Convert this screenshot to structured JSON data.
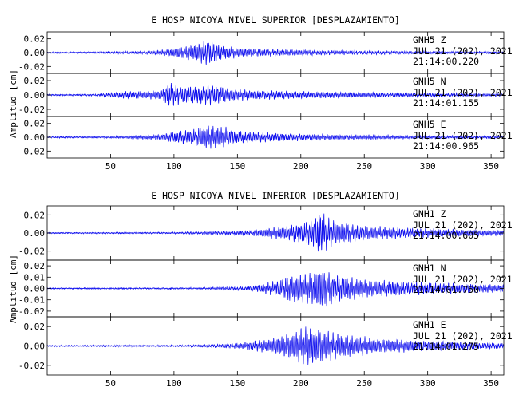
{
  "chart_data": [
    {
      "type": "line",
      "title": "E HOSP NICOYA NIVEL SUPERIOR [DESPLAZAMIENTO]",
      "ylabel": "Amplitud [cm]",
      "xlim": [
        0,
        360
      ],
      "x_ticks": [
        50,
        100,
        150,
        200,
        250,
        300,
        350
      ],
      "color": "#1111ee",
      "panels": [
        {
          "ylim": [
            -0.03,
            0.03
          ],
          "y_ticks": [
            "0.02",
            "0.00",
            "-0.02"
          ],
          "y_tick_values": [
            0.02,
            0.0,
            -0.02
          ],
          "station": "GNH5",
          "component": "Z",
          "date": "JUL 21 (202), 2021",
          "time": "21:14:00.220",
          "signal": {
            "noise": 0.0011,
            "envelope_points": [
              [
                0,
                0.0008
              ],
              [
                40,
                0.0009
              ],
              [
                80,
                0.0022
              ],
              [
                95,
                0.0045
              ],
              [
                110,
                0.009
              ],
              [
                120,
                0.013
              ],
              [
                127,
                0.019
              ],
              [
                135,
                0.011
              ],
              [
                150,
                0.0065
              ],
              [
                180,
                0.0045
              ],
              [
                220,
                0.003
              ],
              [
                280,
                0.002
              ],
              [
                360,
                0.0012
              ]
            ]
          }
        },
        {
          "ylim": [
            -0.03,
            0.03
          ],
          "y_ticks": [
            "0.02",
            "0.00",
            "-0.02"
          ],
          "y_tick_values": [
            0.02,
            0.0,
            -0.02
          ],
          "station": "GNH5",
          "component": "N",
          "date": "JUL 21 (202), 2021",
          "time": "21:14:01.155",
          "signal": {
            "noise": 0.001,
            "envelope_points": [
              [
                0,
                0.0006
              ],
              [
                40,
                0.001
              ],
              [
                55,
                0.0045
              ],
              [
                75,
                0.005
              ],
              [
                90,
                0.006
              ],
              [
                96,
                0.016
              ],
              [
                105,
                0.012
              ],
              [
                120,
                0.011
              ],
              [
                128,
                0.014
              ],
              [
                150,
                0.007
              ],
              [
                200,
                0.0045
              ],
              [
                260,
                0.003
              ],
              [
                360,
                0.0015
              ]
            ]
          }
        },
        {
          "ylim": [
            -0.03,
            0.03
          ],
          "y_ticks": [
            "0.02",
            "0.00",
            "-0.02"
          ],
          "y_tick_values": [
            0.02,
            0.0,
            -0.02
          ],
          "station": "GNH5",
          "component": "E",
          "date": "JUL 21 (202), 2021",
          "time": "21:14:00.965",
          "signal": {
            "noise": 0.001,
            "envelope_points": [
              [
                0,
                0.0007
              ],
              [
                50,
                0.0012
              ],
              [
                90,
                0.004
              ],
              [
                100,
                0.008
              ],
              [
                115,
                0.011
              ],
              [
                125,
                0.016
              ],
              [
                140,
                0.014
              ],
              [
                150,
                0.0085
              ],
              [
                180,
                0.0055
              ],
              [
                230,
                0.0035
              ],
              [
                300,
                0.0022
              ],
              [
                360,
                0.0016
              ]
            ]
          }
        }
      ]
    },
    {
      "type": "line",
      "title": "E HOSP NICOYA NIVEL INFERIOR [DESPLAZAMIENTO]",
      "ylabel": "Amplitud [cm]",
      "xlim": [
        0,
        360
      ],
      "x_ticks": [
        50,
        100,
        150,
        200,
        250,
        300,
        350
      ],
      "color": "#1111ee",
      "panels": [
        {
          "ylim": [
            -0.03,
            0.03
          ],
          "y_ticks": [
            "0.02",
            "0.00",
            "-0.02"
          ],
          "y_tick_values": [
            0.02,
            0.0,
            -0.02
          ],
          "station": "GNH1",
          "component": "Z",
          "date": "JUL 21 (202), 2021",
          "time": "21:14:00.605",
          "signal": {
            "noise": 0.0007,
            "envelope_points": [
              [
                0,
                0.0004
              ],
              [
                100,
                0.0007
              ],
              [
                160,
                0.0025
              ],
              [
                180,
                0.006
              ],
              [
                200,
                0.01
              ],
              [
                210,
                0.015
              ],
              [
                215,
                0.024
              ],
              [
                225,
                0.013
              ],
              [
                250,
                0.0075
              ],
              [
                290,
                0.005
              ],
              [
                330,
                0.0035
              ],
              [
                360,
                0.0025
              ]
            ]
          }
        },
        {
          "ylim": [
            -0.025,
            0.025
          ],
          "y_ticks": [
            "0.02",
            "0.01",
            "0.00",
            "-0.01",
            "-0.02"
          ],
          "y_tick_values": [
            0.02,
            0.01,
            0.0,
            -0.01,
            -0.02
          ],
          "station": "GNH1",
          "component": "N",
          "date": "JUL 21 (202), 2021",
          "time": "21:14:01.750",
          "signal": {
            "noise": 0.0006,
            "envelope_points": [
              [
                0,
                0.0003
              ],
              [
                120,
                0.0006
              ],
              [
                160,
                0.002
              ],
              [
                180,
                0.006
              ],
              [
                190,
                0.011
              ],
              [
                210,
                0.013
              ],
              [
                215,
                0.019
              ],
              [
                225,
                0.012
              ],
              [
                250,
                0.0075
              ],
              [
                300,
                0.005
              ],
              [
                360,
                0.003
              ]
            ]
          }
        },
        {
          "ylim": [
            -0.03,
            0.03
          ],
          "y_ticks": [
            "0.02",
            "0.00",
            "-0.02"
          ],
          "y_tick_values": [
            0.02,
            0.0,
            -0.02
          ],
          "station": "GNH1",
          "component": "E",
          "date": "JUL 21 (202), 2021",
          "time": "21:14:01.275",
          "signal": {
            "noise": 0.0007,
            "envelope_points": [
              [
                0,
                0.0005
              ],
              [
                110,
                0.0008
              ],
              [
                150,
                0.0025
              ],
              [
                175,
                0.0065
              ],
              [
                195,
                0.014
              ],
              [
                205,
                0.019
              ],
              [
                215,
                0.017
              ],
              [
                230,
                0.012
              ],
              [
                260,
                0.007
              ],
              [
                310,
                0.0045
              ],
              [
                360,
                0.0025
              ]
            ]
          }
        }
      ]
    }
  ]
}
